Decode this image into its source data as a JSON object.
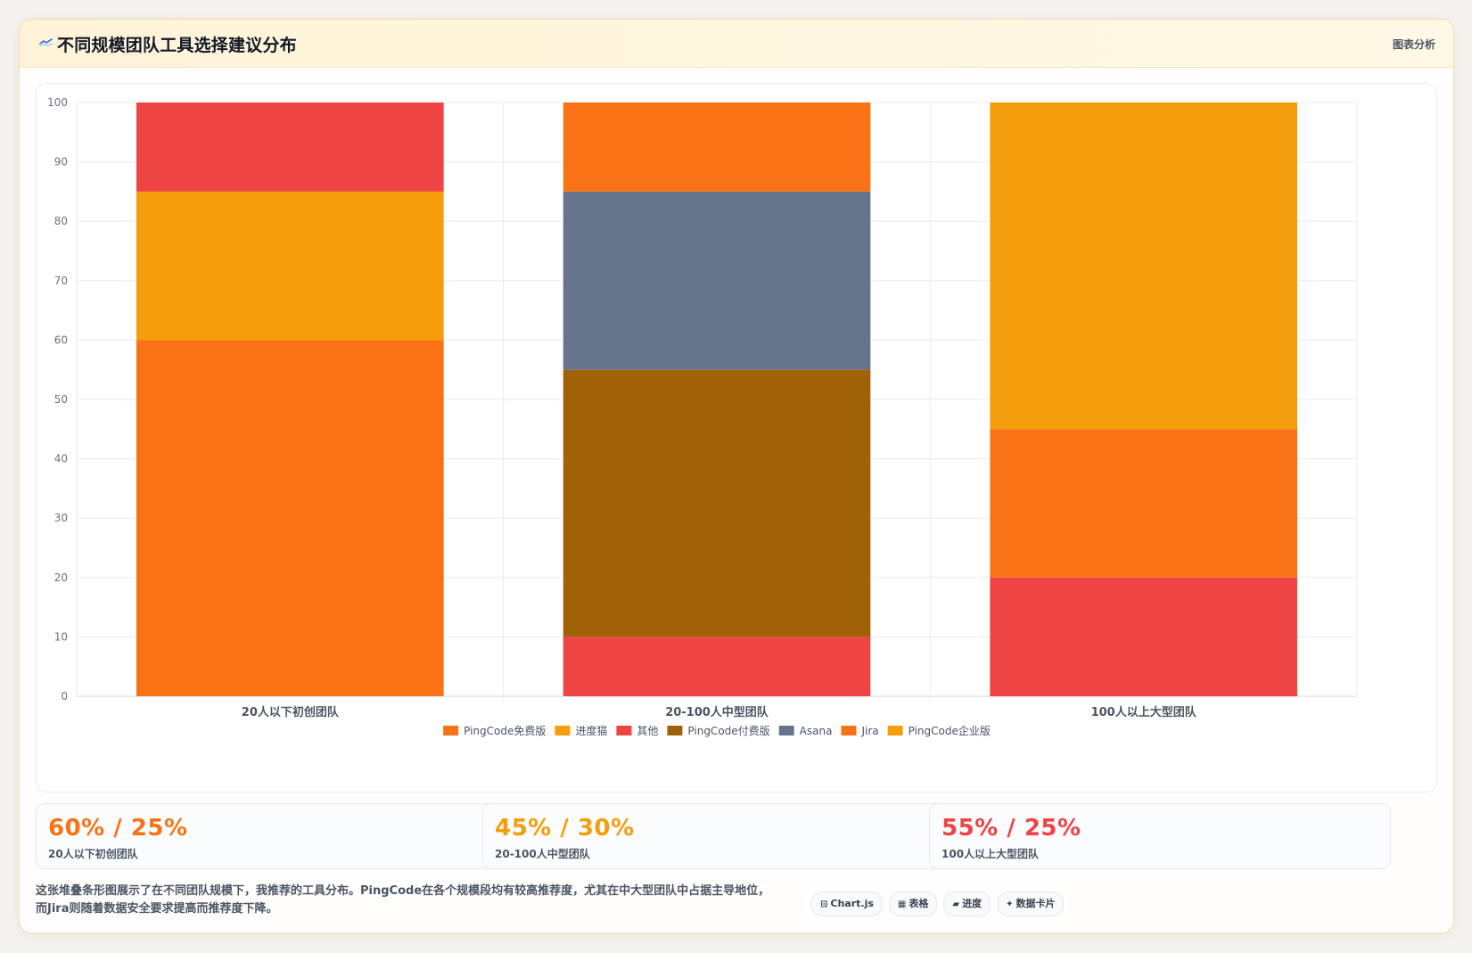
{
  "header": {
    "title": "不同规模团队工具选择建议分布",
    "tag": "图表分析",
    "icon": "chart-line-icon"
  },
  "chart_data": {
    "type": "bar",
    "stacked": true,
    "categories": [
      "20人以下初创团队",
      "20-100人中型团队",
      "100人以上大型团队"
    ],
    "ylim": [
      0,
      100
    ],
    "yticks": [
      0,
      10,
      20,
      30,
      40,
      50,
      60,
      70,
      80,
      90,
      100
    ],
    "grid": true,
    "legend_position": "bottom",
    "series": [
      {
        "name": "PingCode免费版",
        "color": "#f97316",
        "values": [
          60,
          0,
          0
        ]
      },
      {
        "name": "进度猫",
        "color": "#f59e0b",
        "values": [
          25,
          0,
          0
        ]
      },
      {
        "name": "其他",
        "color": "#ef4444",
        "values": [
          15,
          10,
          20
        ]
      },
      {
        "name": "PingCode付费版",
        "color": "#a16207",
        "values": [
          0,
          45,
          0
        ]
      },
      {
        "name": "Asana",
        "color": "#64748b",
        "values": [
          0,
          30,
          0
        ]
      },
      {
        "name": "Jira",
        "color": "#f97316",
        "values": [
          0,
          15,
          25
        ]
      },
      {
        "name": "PingCode企业版",
        "color": "#f59e0b",
        "values": [
          0,
          0,
          55
        ]
      }
    ]
  },
  "stats": [
    {
      "value": "60% / 25%",
      "label": "20人以下初创团队",
      "color": "#f97316"
    },
    {
      "value": "45% / 30%",
      "label": "20-100人中型团队",
      "color": "#f59e0b"
    },
    {
      "value": "55% / 25%",
      "label": "100人以上大型团队",
      "color": "#ef4444"
    }
  ],
  "footer": {
    "description": "这张堆叠条形图展示了在不同团队规模下，我推荐的工具分布。PingCode在各个规模段均有较高推荐度，尤其在中大型团队中占据主导地位，而Jira则随着数据安全要求提高而推荐度下降。",
    "tags": [
      {
        "icon": "⊟",
        "label": "Chart.js",
        "name": "tag-chartjs"
      },
      {
        "icon": "▦",
        "label": "表格",
        "name": "tag-table"
      },
      {
        "icon": "▰",
        "label": "进度",
        "name": "tag-progress"
      },
      {
        "icon": "✦",
        "label": "数据卡片",
        "name": "tag-data-card"
      }
    ]
  }
}
